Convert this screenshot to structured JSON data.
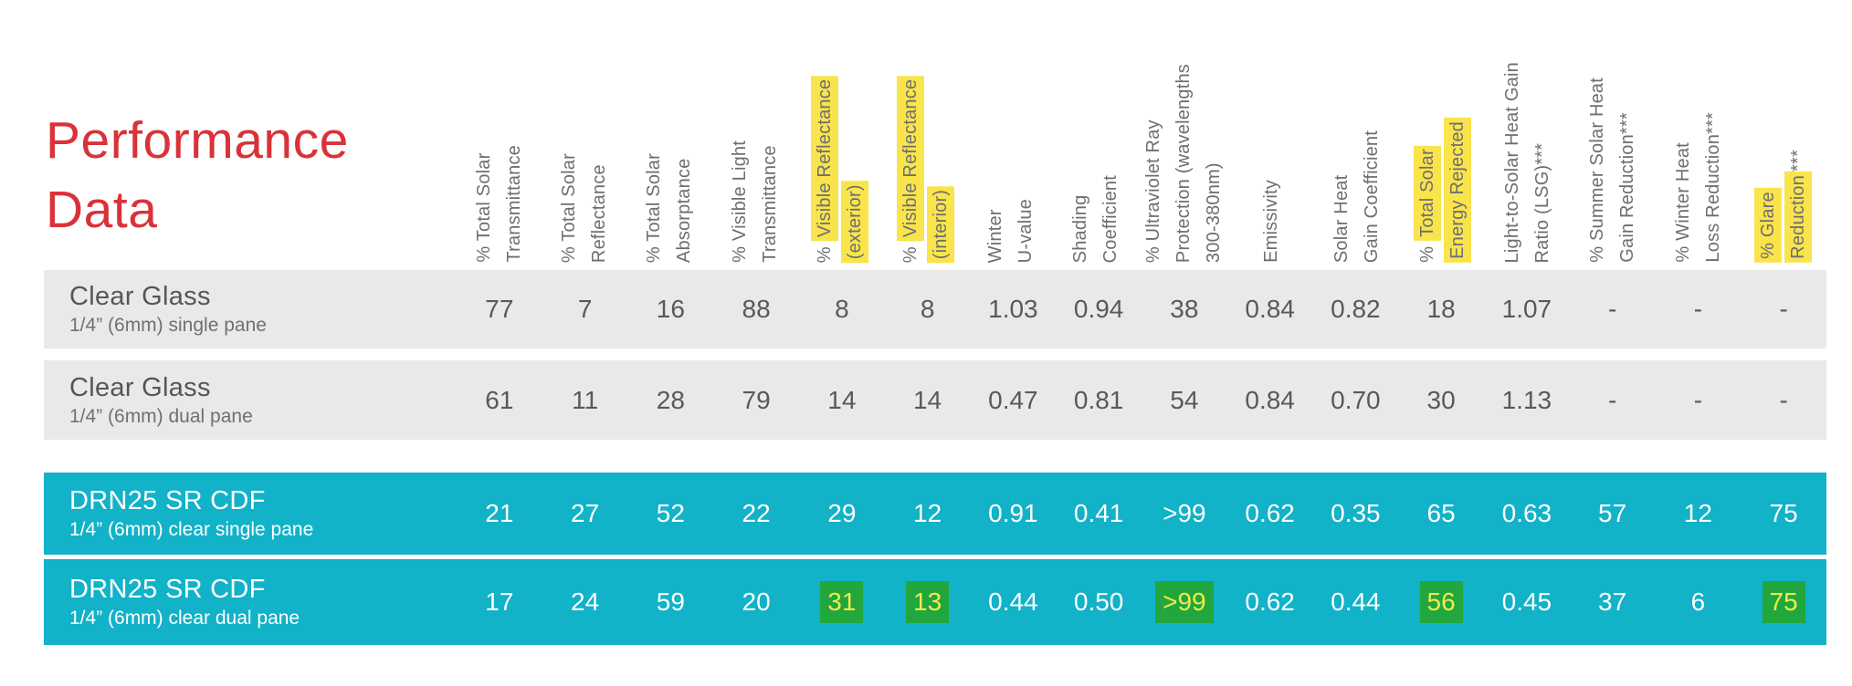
{
  "colors": {
    "brand-red": "#d93239",
    "teal": "#12b2c8",
    "row-gray": "#e9e9ea",
    "header-gray": "#6d6e71",
    "value-gray": "#58595b",
    "hl-yellow": "#f9e44c",
    "hl-green": "#21a73d",
    "hl-green-text": "#f2ea4b"
  },
  "title": {
    "line1": "Performance",
    "line2": "Data"
  },
  "columns": [
    {
      "line1": "% Total Solar",
      "line2": "Transmittance"
    },
    {
      "line1": "% Total Solar",
      "line2": "Reflectance"
    },
    {
      "line1": "% Total Solar",
      "line2": "Absorptance"
    },
    {
      "line1": "% Visible Light",
      "line2": "Transmittance"
    },
    {
      "prefix": "% ",
      "hl1": "Visible Reflectance",
      "hl2": "(exterior)"
    },
    {
      "prefix": "% ",
      "hl1": "Visible Reflectance",
      "hl2": "(interior)"
    },
    {
      "line1": "Winter",
      "line2": "U-value"
    },
    {
      "line1": "Shading",
      "line2": "Coefficient"
    },
    {
      "line1": "% Ultraviolet Ray",
      "line2": "Protection (wavelengths",
      "line3": "300-380nm)"
    },
    {
      "line1": "Emissivity"
    },
    {
      "line1": "Solar Heat",
      "line2": "Gain Coefficient"
    },
    {
      "prefix": "% ",
      "hl1": "Total Solar",
      "hl2": "Energy Rejected"
    },
    {
      "line1": "Light-to-Solar Heat Gain",
      "line2": "Ratio (LSG)***"
    },
    {
      "line1": "% Summer Solar Heat",
      "line2": "Gain Reduction***"
    },
    {
      "line1": "% Winter Heat",
      "line2": "Loss Reduction***"
    },
    {
      "hl1": "% Glare",
      "hl2": "Reduction",
      "suffix": "***"
    }
  ],
  "rows": [
    {
      "name": "Clear Glass",
      "desc": "1/4” (6mm) single pane",
      "values": [
        "77",
        "7",
        "16",
        "88",
        "8",
        "8",
        "1.03",
        "0.94",
        "38",
        "0.84",
        "0.82",
        "18",
        "1.07",
        "-",
        "-",
        "-"
      ]
    },
    {
      "name": "Clear Glass",
      "desc": "1/4” (6mm) dual pane",
      "values": [
        "61",
        "11",
        "28",
        "79",
        "14",
        "14",
        "0.47",
        "0.81",
        "54",
        "0.84",
        "0.70",
        "30",
        "1.13",
        "-",
        "-",
        "-"
      ]
    },
    {
      "name": "DRN25 SR CDF",
      "desc": "1/4” (6mm) clear single pane",
      "values": [
        "21",
        "27",
        "52",
        "22",
        "29",
        "12",
        "0.91",
        "0.41",
        ">99",
        "0.62",
        "0.35",
        "65",
        "0.63",
        "57",
        "12",
        "75"
      ]
    },
    {
      "name": "DRN25 SR CDF",
      "desc": "1/4” (6mm) clear dual pane",
      "values": [
        "17",
        "24",
        "59",
        "20",
        "31",
        "13",
        "0.44",
        "0.50",
        ">99",
        "0.62",
        "0.44",
        "56",
        "0.45",
        "37",
        "6",
        "75"
      ],
      "highlighted_columns": [
        4,
        5,
        8,
        11,
        15
      ]
    }
  ]
}
